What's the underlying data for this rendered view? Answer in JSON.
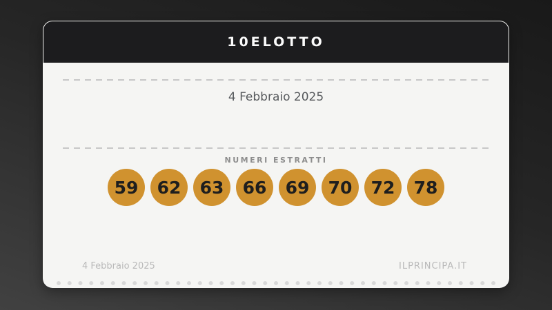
{
  "page": {
    "background_top": "#191919",
    "background_bottom": "#414141"
  },
  "card": {
    "title": "10ELOTTO",
    "header_bg": "#1c1c1e",
    "body_bg": "#f5f5f3",
    "draw_date": "4 Febbraio 2025",
    "numbers_label": "NUMERI ESTRATTI",
    "numbers": [
      "59",
      "62",
      "63",
      "66",
      "69",
      "70",
      "72",
      "78"
    ],
    "ball_color": "#d0922f",
    "ball_text_color": "#1e1e1e",
    "footer": {
      "date": "4 Febbraio 2025",
      "site": "ILPRINCIPA.IT"
    }
  }
}
